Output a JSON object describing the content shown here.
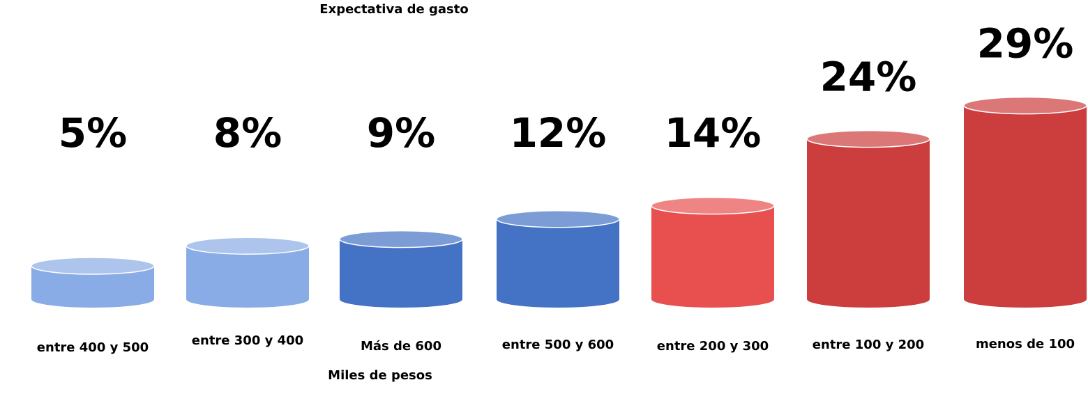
{
  "chart_data": {
    "type": "bar",
    "title": "Expectativa de gasto",
    "x_label": "Miles de pesos",
    "categories": [
      "entre 400 y 500",
      "entre 300 y 400",
      "Más de 600",
      "entre 500 y 600",
      "entre 200 y 300",
      "entre 100 y 200",
      "menos de 100"
    ],
    "values": [
      5,
      8,
      9,
      12,
      14,
      24,
      29
    ],
    "value_labels": [
      "5%",
      "8%",
      "9%",
      "12%",
      "14%",
      "24%",
      "29%"
    ],
    "colors": [
      "#8aace6",
      "#8aace6",
      "#4472c4",
      "#4472c4",
      "#e84f4f",
      "#cc3d3d",
      "#cc3d3d"
    ]
  }
}
